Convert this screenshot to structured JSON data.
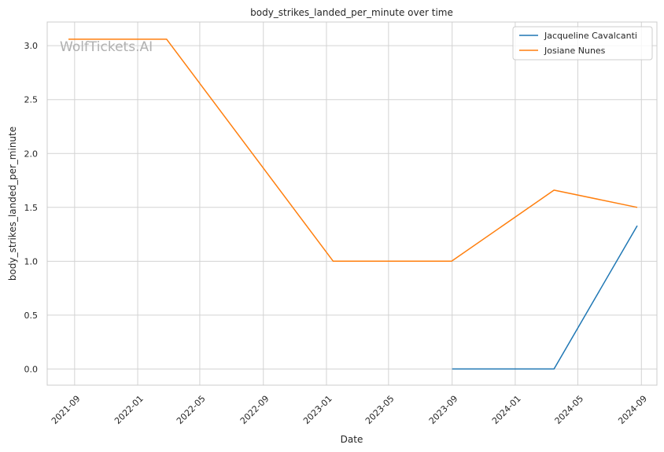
{
  "chart_data": {
    "type": "line",
    "title": "body_strikes_landed_per_minute over time",
    "xlabel": "Date",
    "ylabel": "body_strikes_landed_per_minute",
    "watermark": "WolfTickets.AI",
    "x_tick_labels": [
      "2021-09",
      "2022-01",
      "2022-05",
      "2022-09",
      "2023-01",
      "2023-05",
      "2023-09",
      "2024-01",
      "2024-05",
      "2024-09"
    ],
    "y_tick_labels": [
      "0.0",
      "0.5",
      "1.0",
      "1.5",
      "2.0",
      "2.5",
      "3.0"
    ],
    "ylim": [
      -0.15,
      3.22
    ],
    "grid": true,
    "legend_position": "top-right",
    "series": [
      {
        "name": "Jacqueline Cavalcanti",
        "color": "#1f77b4",
        "x": [
          "2023-09-01",
          "2024-03-16",
          "2024-08-24"
        ],
        "y": [
          0.0,
          0.0,
          1.33
        ]
      },
      {
        "name": "Josiane Nunes",
        "color": "#ff7f0e",
        "x": [
          "2021-08-20",
          "2022-02-26",
          "2023-01-14",
          "2023-08-31",
          "2024-03-16",
          "2024-08-24"
        ],
        "y": [
          3.06,
          3.06,
          1.0,
          1.0,
          1.66,
          1.5
        ]
      }
    ]
  }
}
